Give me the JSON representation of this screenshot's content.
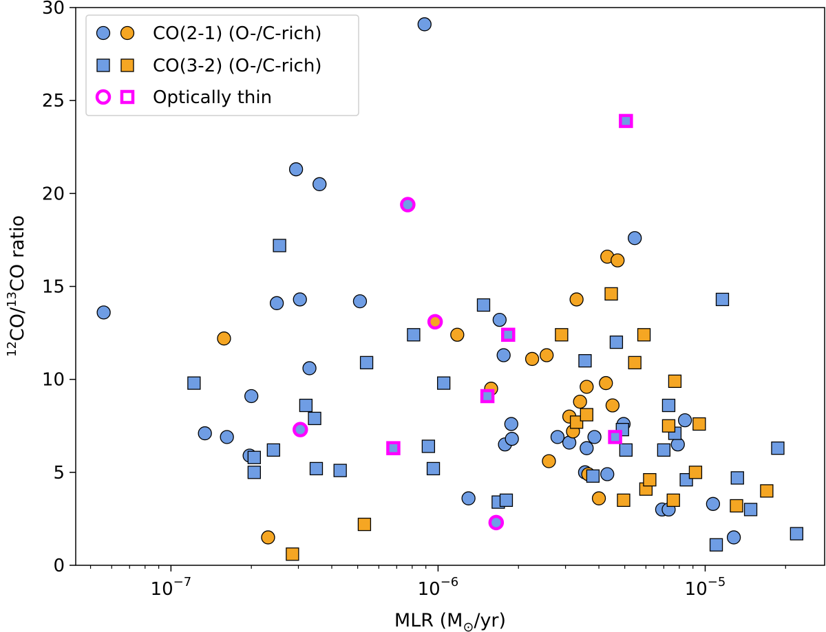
{
  "chart_data": {
    "type": "scatter",
    "title": "",
    "xlabel": "MLR (M⊙/yr)",
    "xlabel_prefix": "MLR (M",
    "xlabel_sub": "⊙",
    "xlabel_suffix": "/yr)",
    "ylabel": "12CO/13CO ratio",
    "ylabel_parts": {
      "sup1": "12",
      "mid": "CO/",
      "sup2": "13",
      "end": "CO ratio"
    },
    "xscale": "log",
    "xlim": [
      4.4e-08,
      2.8e-05
    ],
    "ylim": [
      0,
      30
    ],
    "grid": false,
    "legend_position": "top-left",
    "colors": {
      "o_rich": "#6f9de4",
      "c_rich": "#f5a623",
      "thin": "#ff00ff"
    },
    "x_ticks": [
      {
        "value": 1e-07,
        "base": "10",
        "exp": "−7"
      },
      {
        "value": 1e-06,
        "base": "10",
        "exp": "−6"
      },
      {
        "value": 1e-05,
        "base": "10",
        "exp": "−5"
      }
    ],
    "y_ticks": [
      0,
      5,
      10,
      15,
      20,
      25,
      30
    ],
    "legend": [
      {
        "label": "CO(2-1) (O-/C-rich)",
        "marker1": "circle-o",
        "marker2": "circle-c"
      },
      {
        "label": "CO(3-2) (O-/C-rich)",
        "marker1": "square-o",
        "marker2": "square-c"
      },
      {
        "label": "Optically thin",
        "marker1": "circle-thin",
        "marker2": "square-thin"
      }
    ],
    "series": [
      {
        "name": "CO(2-1) O-rich",
        "marker": "circle",
        "chem": "O",
        "thin": false,
        "points": [
          [
            5.6e-08,
            13.6
          ],
          [
            1.34e-07,
            7.1
          ],
          [
            1.62e-07,
            6.9
          ],
          [
            1.97e-07,
            5.9
          ],
          [
            2e-07,
            9.1
          ],
          [
            2.49e-07,
            14.1
          ],
          [
            2.94e-07,
            21.3
          ],
          [
            3.04e-07,
            14.3
          ],
          [
            3.3e-07,
            10.6
          ],
          [
            3.6e-07,
            20.5
          ],
          [
            5.1e-07,
            14.2
          ],
          [
            8.9e-07,
            29.1
          ],
          [
            1.3e-06,
            3.6
          ],
          [
            1.7e-06,
            13.2
          ],
          [
            1.76e-06,
            11.3
          ],
          [
            1.78e-06,
            6.5
          ],
          [
            1.88e-06,
            7.6
          ],
          [
            1.89e-06,
            6.8
          ],
          [
            2.8e-06,
            6.9
          ],
          [
            3.1e-06,
            6.6
          ],
          [
            3.6e-06,
            6.3
          ],
          [
            3.55e-06,
            5.0
          ],
          [
            3.85e-06,
            6.9
          ],
          [
            4.3e-06,
            4.9
          ],
          [
            4.95e-06,
            7.6
          ],
          [
            5.45e-06,
            17.6
          ],
          [
            6.9e-06,
            3.0
          ],
          [
            7.3e-06,
            3.0
          ],
          [
            7.9e-06,
            6.5
          ],
          [
            8.4e-06,
            7.8
          ],
          [
            1.07e-05,
            3.3
          ],
          [
            1.28e-05,
            1.5
          ]
        ]
      },
      {
        "name": "CO(2-1) C-rich",
        "marker": "circle",
        "chem": "C",
        "thin": false,
        "points": [
          [
            1.58e-07,
            12.2
          ],
          [
            2.31e-07,
            1.5
          ],
          [
            1.58e-06,
            9.5
          ],
          [
            1.18e-06,
            12.4
          ],
          [
            2.25e-06,
            11.1
          ],
          [
            2.55e-06,
            11.3
          ],
          [
            2.6e-06,
            5.6
          ],
          [
            3.1e-06,
            8.0
          ],
          [
            3.2e-06,
            7.2
          ],
          [
            3.3e-06,
            14.3
          ],
          [
            3.4e-06,
            8.8
          ],
          [
            3.6e-06,
            9.6
          ],
          [
            3.65e-06,
            4.9
          ],
          [
            4e-06,
            3.6
          ],
          [
            4.25e-06,
            9.8
          ],
          [
            4.3e-06,
            16.6
          ],
          [
            4.5e-06,
            8.6
          ],
          [
            4.7e-06,
            16.4
          ]
        ]
      },
      {
        "name": "CO(3-2) O-rich",
        "marker": "square",
        "chem": "O",
        "thin": false,
        "points": [
          [
            1.22e-07,
            9.8
          ],
          [
            2.05e-07,
            5.8
          ],
          [
            2.05e-07,
            5.0
          ],
          [
            2.42e-07,
            6.2
          ],
          [
            2.55e-07,
            17.2
          ],
          [
            3.2e-07,
            8.6
          ],
          [
            3.45e-07,
            7.9
          ],
          [
            3.5e-07,
            5.2
          ],
          [
            4.3e-07,
            5.1
          ],
          [
            5.4e-07,
            10.9
          ],
          [
            8.1e-07,
            12.4
          ],
          [
            9.2e-07,
            6.4
          ],
          [
            9.6e-07,
            5.2
          ],
          [
            1.05e-06,
            9.8
          ],
          [
            1.48e-06,
            14.0
          ],
          [
            1.68e-06,
            3.4
          ],
          [
            1.8e-06,
            3.5
          ],
          [
            3.55e-06,
            11.0
          ],
          [
            3.8e-06,
            4.8
          ],
          [
            4.65e-06,
            12.0
          ],
          [
            4.9e-06,
            7.3
          ],
          [
            5.05e-06,
            6.2
          ],
          [
            7e-06,
            6.2
          ],
          [
            7.3e-06,
            8.6
          ],
          [
            7.7e-06,
            7.1
          ],
          [
            8.5e-06,
            4.6
          ],
          [
            1.1e-05,
            1.1
          ],
          [
            1.16e-05,
            14.3
          ],
          [
            1.32e-05,
            4.7
          ],
          [
            1.48e-05,
            3.0
          ],
          [
            1.87e-05,
            6.3
          ],
          [
            2.2e-05,
            1.7
          ]
        ]
      },
      {
        "name": "CO(3-2) C-rich",
        "marker": "square",
        "chem": "C",
        "thin": false,
        "points": [
          [
            2.85e-07,
            0.6
          ],
          [
            5.3e-07,
            2.2
          ],
          [
            2.9e-06,
            12.4
          ],
          [
            3.3e-06,
            7.7
          ],
          [
            3.6e-06,
            8.1
          ],
          [
            4.45e-06,
            14.6
          ],
          [
            4.95e-06,
            3.5
          ],
          [
            5.45e-06,
            10.9
          ],
          [
            5.9e-06,
            12.4
          ],
          [
            6e-06,
            4.1
          ],
          [
            6.2e-06,
            4.6
          ],
          [
            7.3e-06,
            7.5
          ],
          [
            7.6e-06,
            3.5
          ],
          [
            7.7e-06,
            9.9
          ],
          [
            9.2e-06,
            5.0
          ],
          [
            9.5e-06,
            7.6
          ],
          [
            1.31e-05,
            3.2
          ],
          [
            1.7e-05,
            4.0
          ]
        ]
      },
      {
        "name": "Optically thin circles",
        "marker": "circle",
        "thin": true,
        "points": [
          [
            [
              3.05e-07,
              7.3
            ],
            "O"
          ],
          [
            [
              7.7e-07,
              19.4
            ],
            "O"
          ],
          [
            [
              9.75e-07,
              13.1
            ],
            "C"
          ],
          [
            [
              1.65e-06,
              2.3
            ],
            "O"
          ]
        ]
      },
      {
        "name": "Optically thin squares",
        "marker": "square",
        "thin": true,
        "points": [
          [
            [
              6.8e-07,
              6.3
            ],
            "O"
          ],
          [
            [
              1.53e-06,
              9.1
            ],
            "O"
          ],
          [
            [
              1.83e-06,
              12.4
            ],
            "O"
          ],
          [
            [
              4.6e-06,
              6.9
            ],
            "O"
          ],
          [
            [
              5.05e-06,
              23.9
            ],
            "O"
          ]
        ]
      }
    ]
  }
}
